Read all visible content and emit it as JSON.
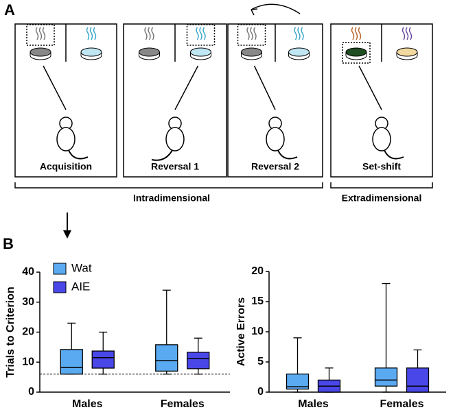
{
  "panel_labels": [
    "A",
    "B"
  ],
  "panel_a": {
    "stages": [
      "Acquisition",
      "Reversal 1",
      "Reversal 2",
      "Set-shift"
    ],
    "groups": [
      "Intradimensional",
      "Extradimensional"
    ]
  },
  "chart_data": [
    {
      "type": "box",
      "ylabel": "Trials to Criterion",
      "categories": [
        "Males",
        "Females"
      ],
      "ylim": [
        0,
        40
      ],
      "yticks": [
        0,
        10,
        20,
        30,
        40
      ],
      "reference_line": 6,
      "legend": true,
      "series": [
        {
          "name": "Wat",
          "color": "#5aaaf2",
          "boxes": [
            {
              "min": 6,
              "q1": 6,
              "median": 8.2,
              "q3": 14.2,
              "max": 23
            },
            {
              "min": 6,
              "q1": 7,
              "median": 10.5,
              "q3": 15.8,
              "max": 34
            }
          ]
        },
        {
          "name": "AIE",
          "color": "#4a47e8",
          "boxes": [
            {
              "min": 6,
              "q1": 8,
              "median": 11.5,
              "q3": 13.7,
              "max": 20
            },
            {
              "min": 6,
              "q1": 7.8,
              "median": 11.2,
              "q3": 13.3,
              "max": 18
            }
          ]
        }
      ]
    },
    {
      "type": "box",
      "ylabel": "Active Errors",
      "categories": [
        "Males",
        "Females"
      ],
      "ylim": [
        0,
        20
      ],
      "yticks": [
        0,
        5,
        10,
        15,
        20
      ],
      "legend": false,
      "series": [
        {
          "color": "#5aaaf2",
          "boxes": [
            {
              "min": 0,
              "q1": 0.5,
              "median": 0.9,
              "q3": 3,
              "max": 9
            },
            {
              "min": 0,
              "q1": 1,
              "median": 2,
              "q3": 4,
              "max": 18
            }
          ]
        },
        {
          "color": "#4a47e8",
          "boxes": [
            {
              "min": 0,
              "q1": 0,
              "median": 1,
              "q3": 2,
              "max": 4
            },
            {
              "min": 0,
              "q1": 0,
              "median": 1,
              "q3": 4,
              "max": 7
            }
          ]
        }
      ]
    }
  ]
}
